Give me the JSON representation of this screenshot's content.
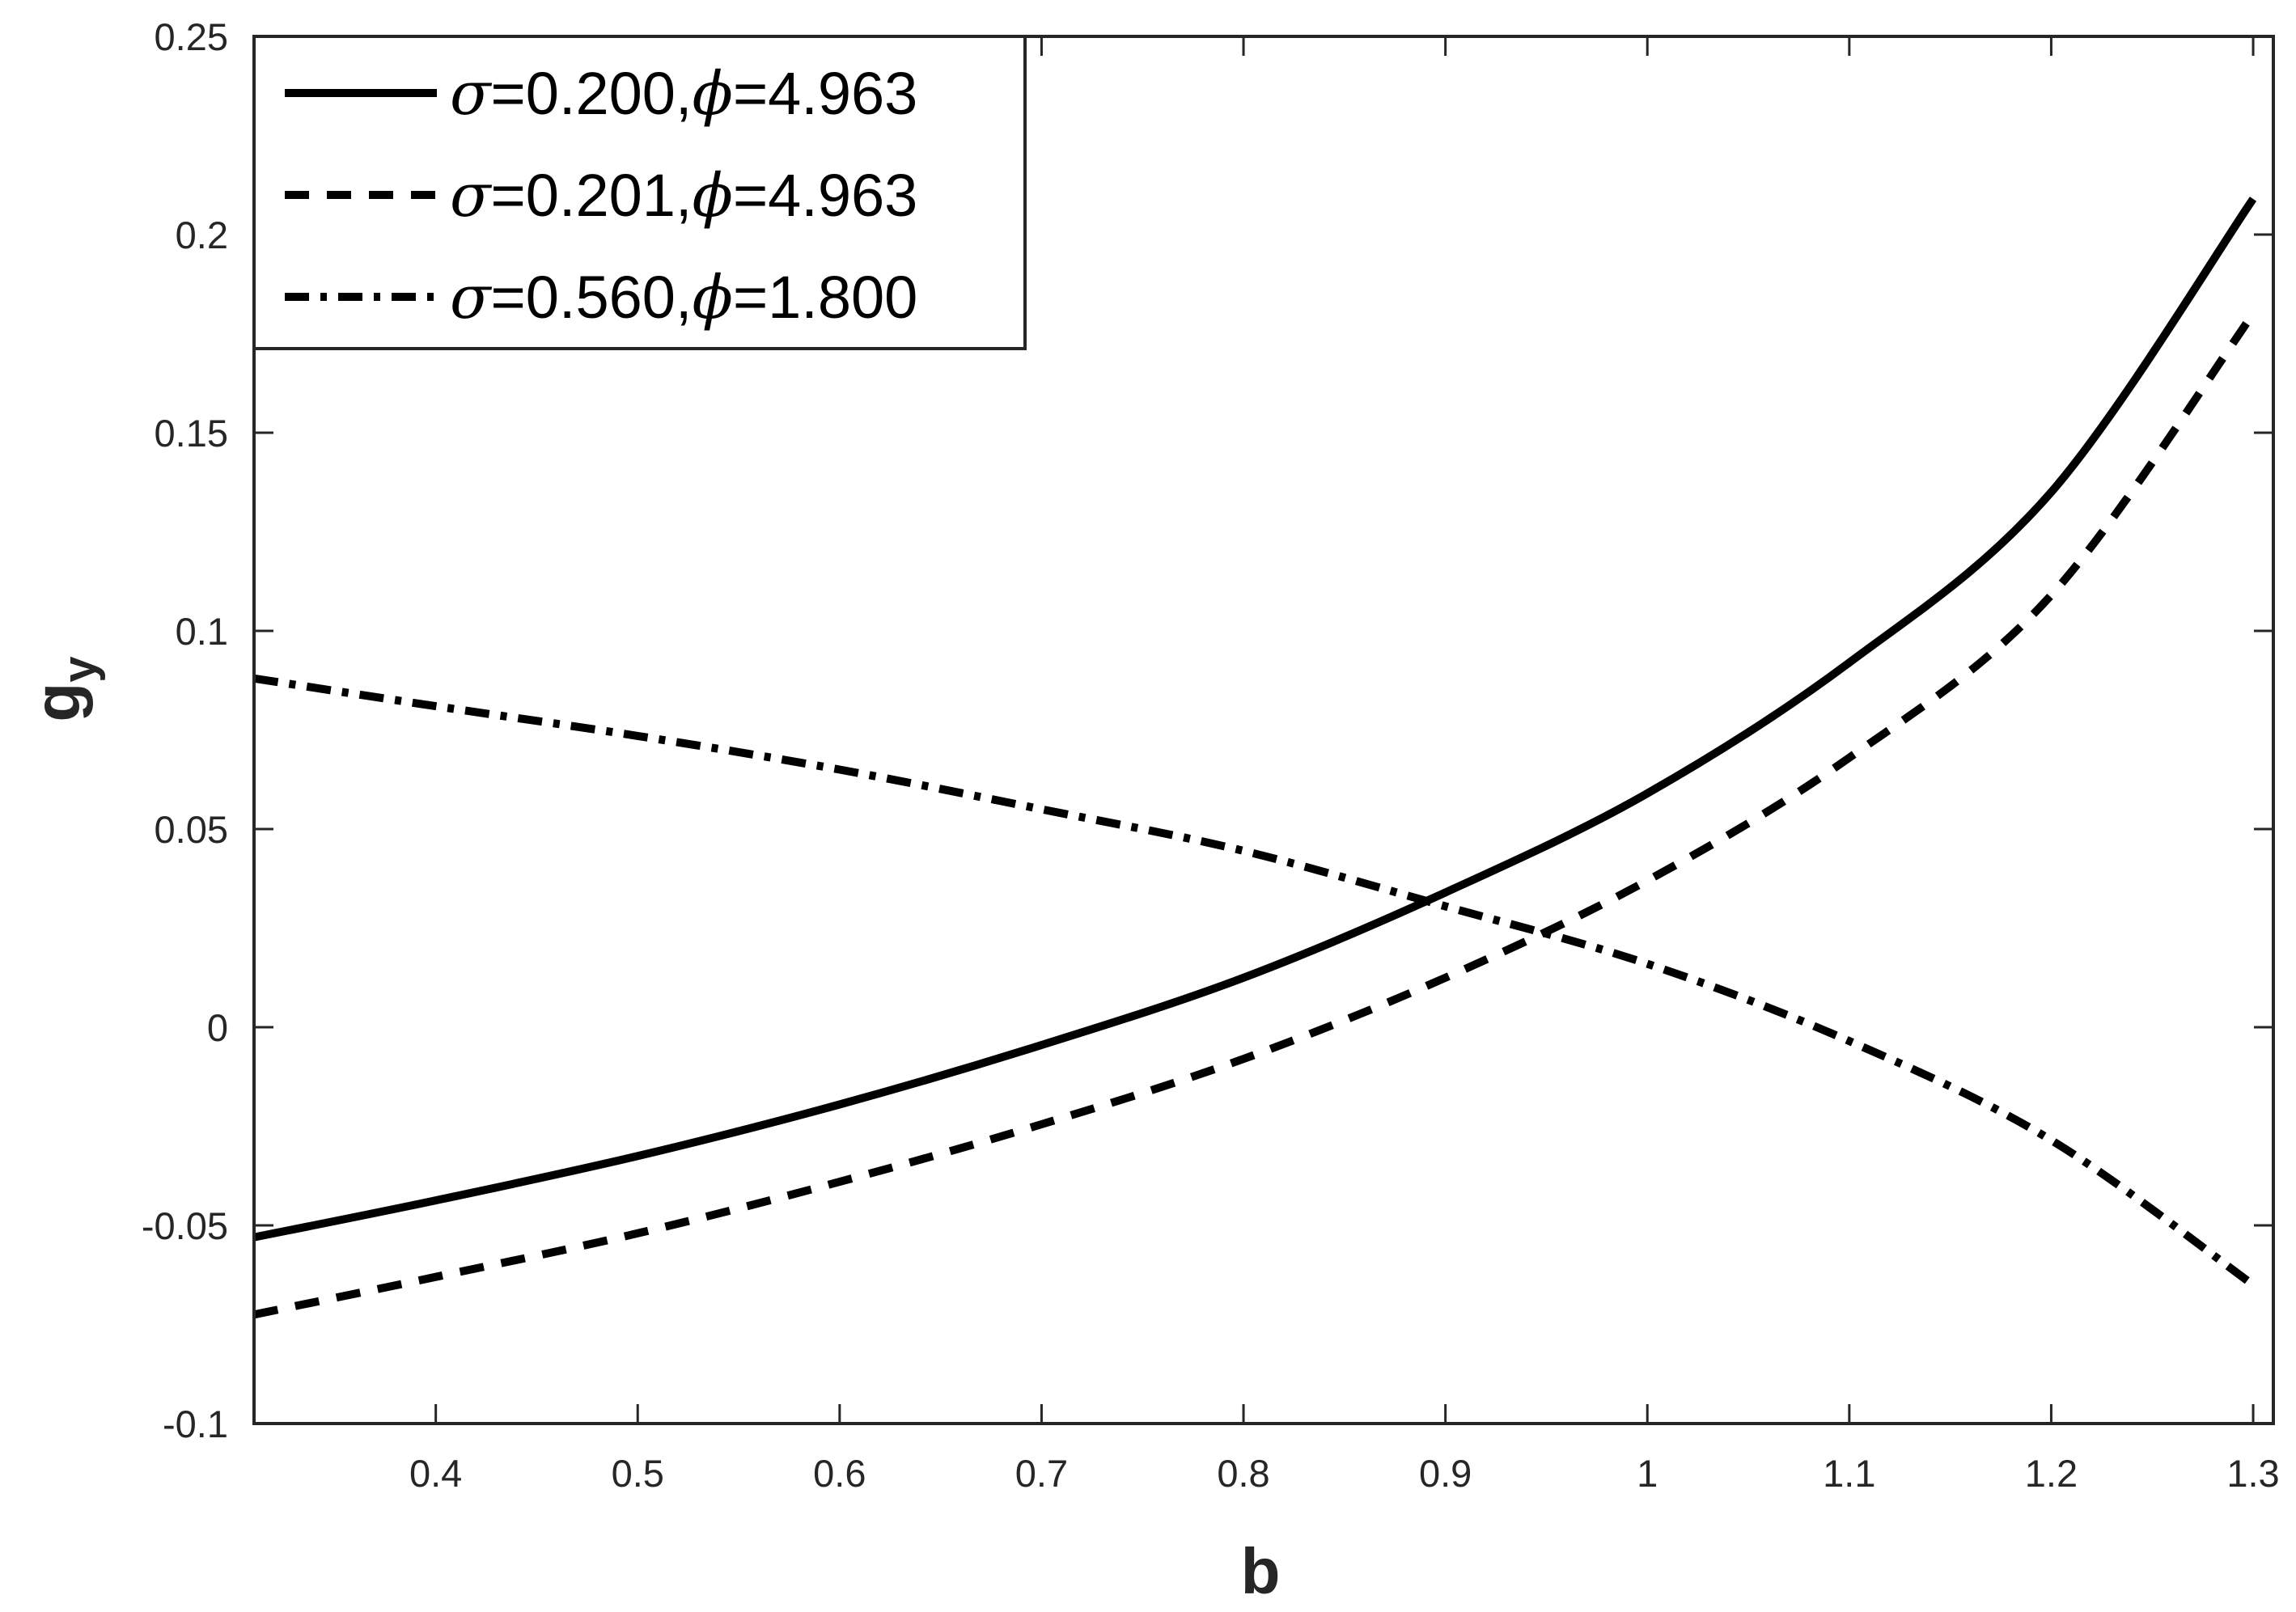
{
  "chart_data": {
    "type": "line",
    "title": "",
    "xlabel": "b",
    "ylabel": {
      "main": "g",
      "sub": "y"
    },
    "xlim": [
      0.31,
      1.31
    ],
    "ylim": [
      -0.1,
      0.25
    ],
    "xticks": [
      0.4,
      0.5,
      0.6,
      0.7,
      0.8,
      0.9,
      1,
      1.1,
      1.2,
      1.3
    ],
    "xtick_labels": [
      "0.4",
      "0.5",
      "0.6",
      "0.7",
      "0.8",
      "0.9",
      "1",
      "1.1",
      "1.2",
      "1.3"
    ],
    "yticks": [
      -0.1,
      -0.05,
      0,
      0.05,
      0.1,
      0.15,
      0.2,
      0.25
    ],
    "ytick_labels": [
      "-0.1",
      "-0.05",
      "0",
      "0.05",
      "0.1",
      "0.15",
      "0.2",
      "0.25"
    ],
    "grid": false,
    "box": true,
    "legend_position": "top-left",
    "series": [
      {
        "sigma": "0.200",
        "phi": "4.963",
        "line_style": "solid",
        "color": "#000000",
        "x": [
          0.31,
          0.4,
          0.5,
          0.6,
          0.7,
          0.8,
          0.9,
          1.0,
          1.1,
          1.2,
          1.3
        ],
        "y": [
          -0.053,
          -0.0437,
          -0.0325,
          -0.0195,
          -0.0045,
          0.0125,
          0.034,
          0.059,
          0.092,
          0.135,
          0.209
        ]
      },
      {
        "sigma": "0.201",
        "phi": "4.963",
        "line_style": "dash",
        "color": "#000000",
        "x": [
          0.31,
          0.4,
          0.5,
          0.6,
          0.7,
          0.8,
          0.9,
          1.0,
          1.1,
          1.2,
          1.3
        ],
        "y": [
          -0.0725,
          -0.063,
          -0.052,
          -0.039,
          -0.0245,
          -0.008,
          0.0125,
          0.037,
          0.068,
          0.109,
          0.18
        ]
      },
      {
        "sigma": "0.560",
        "phi": "1.800",
        "line_style": "dashdot",
        "color": "#000000",
        "x": [
          0.31,
          0.4,
          0.5,
          0.6,
          0.7,
          0.8,
          0.9,
          1.0,
          1.1,
          1.2,
          1.3
        ],
        "y": [
          0.088,
          0.081,
          0.0735,
          0.065,
          0.055,
          0.0445,
          0.0305,
          0.016,
          -0.0035,
          -0.0285,
          -0.065
        ]
      }
    ]
  }
}
